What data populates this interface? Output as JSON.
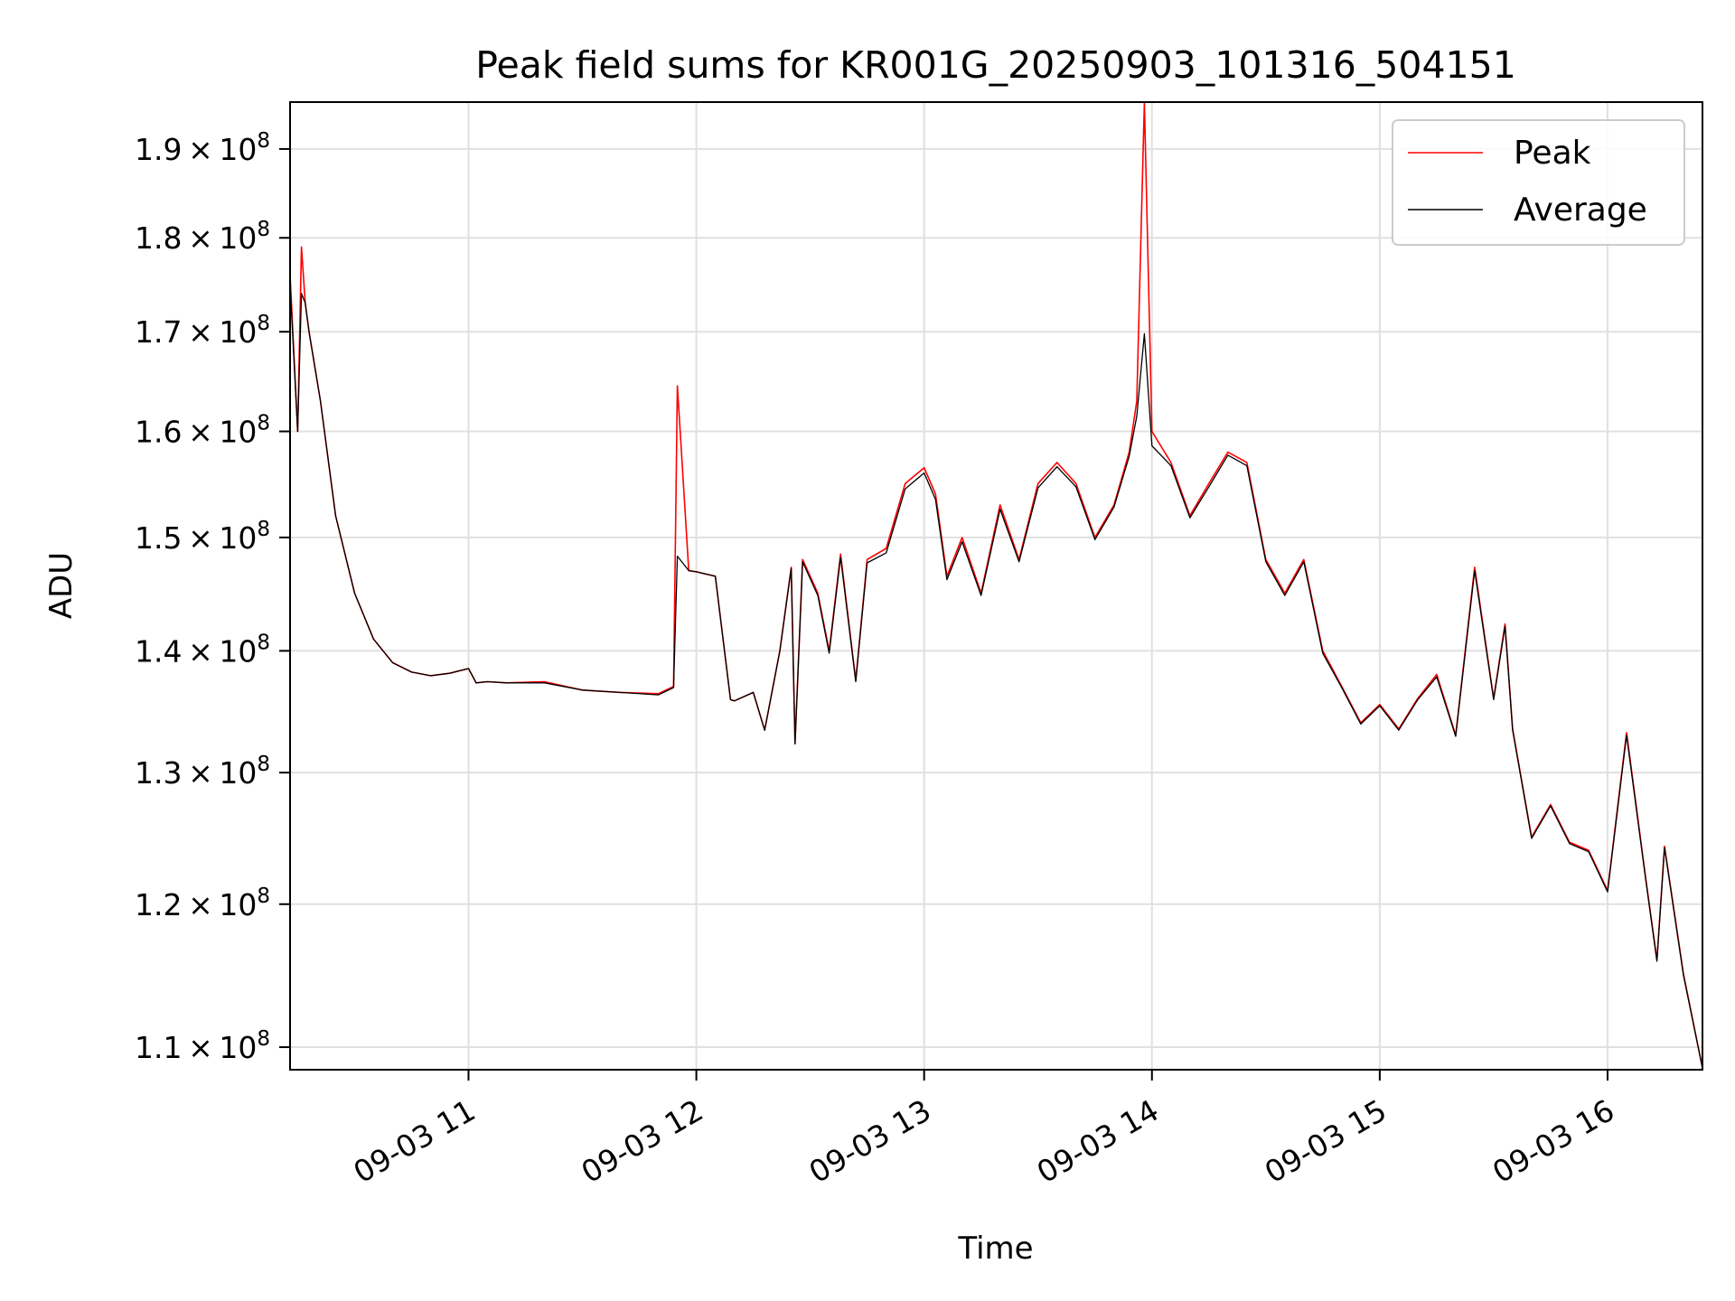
{
  "chart_data": {
    "type": "line",
    "title": "Peak field sums for KR001G_20250903_101316_504151",
    "xlabel": "Time",
    "ylabel": "ADU",
    "y_scale": "log",
    "ylim": [
      108500000,
      195500000
    ],
    "xlim": [
      "2025-09-03 10:13",
      "2025-09-03 16:25"
    ],
    "grid": true,
    "legend_position": "top-right",
    "x_ticks": [
      {
        "label": "09-03 11",
        "t": "2025-09-03 11:00"
      },
      {
        "label": "09-03 12",
        "t": "2025-09-03 12:00"
      },
      {
        "label": "09-03 13",
        "t": "2025-09-03 13:00"
      },
      {
        "label": "09-03 14",
        "t": "2025-09-03 14:00"
      },
      {
        "label": "09-03 15",
        "t": "2025-09-03 15:00"
      },
      {
        "label": "09-03 16",
        "t": "2025-09-03 16:00"
      }
    ],
    "y_ticks": [
      {
        "value": 110000000,
        "mantissa": "1.1",
        "exponent": "8"
      },
      {
        "value": 120000000,
        "mantissa": "1.2",
        "exponent": "8"
      },
      {
        "value": 130000000,
        "mantissa": "1.3",
        "exponent": "8"
      },
      {
        "value": 140000000,
        "mantissa": "1.4",
        "exponent": "8"
      },
      {
        "value": 150000000,
        "mantissa": "1.5",
        "exponent": "8"
      },
      {
        "value": 160000000,
        "mantissa": "1.6",
        "exponent": "8"
      },
      {
        "value": 170000000,
        "mantissa": "1.7",
        "exponent": "8"
      },
      {
        "value": 180000000,
        "mantissa": "1.8",
        "exponent": "8"
      },
      {
        "value": 190000000,
        "mantissa": "1.9",
        "exponent": "8"
      }
    ],
    "colors": {
      "peak": "#ff0000",
      "average": "#000000",
      "grid": "#e0e0e0"
    },
    "x": [
      "2025-09-03 10:13",
      "2025-09-03 10:15",
      "2025-09-03 10:16",
      "2025-09-03 10:17",
      "2025-09-03 10:18",
      "2025-09-03 10:21",
      "2025-09-03 10:25",
      "2025-09-03 10:30",
      "2025-09-03 10:35",
      "2025-09-03 10:40",
      "2025-09-03 10:45",
      "2025-09-03 10:50",
      "2025-09-03 10:55",
      "2025-09-03 11:00",
      "2025-09-03 11:02",
      "2025-09-03 11:05",
      "2025-09-03 11:10",
      "2025-09-03 11:20",
      "2025-09-03 11:30",
      "2025-09-03 11:40",
      "2025-09-03 11:50",
      "2025-09-03 11:54",
      "2025-09-03 11:55",
      "2025-09-03 11:58",
      "2025-09-03 12:00",
      "2025-09-03 12:05",
      "2025-09-03 12:09",
      "2025-09-03 12:10",
      "2025-09-03 12:15",
      "2025-09-03 12:18",
      "2025-09-03 12:22",
      "2025-09-03 12:25",
      "2025-09-03 12:26",
      "2025-09-03 12:28",
      "2025-09-03 12:32",
      "2025-09-03 12:35",
      "2025-09-03 12:38",
      "2025-09-03 12:42",
      "2025-09-03 12:45",
      "2025-09-03 12:50",
      "2025-09-03 12:55",
      "2025-09-03 13:00",
      "2025-09-03 13:03",
      "2025-09-03 13:06",
      "2025-09-03 13:10",
      "2025-09-03 13:15",
      "2025-09-03 13:20",
      "2025-09-03 13:25",
      "2025-09-03 13:30",
      "2025-09-03 13:35",
      "2025-09-03 13:40",
      "2025-09-03 13:45",
      "2025-09-03 13:50",
      "2025-09-03 13:54",
      "2025-09-03 13:56",
      "2025-09-03 13:58",
      "2025-09-03 14:00",
      "2025-09-03 14:05",
      "2025-09-03 14:10",
      "2025-09-03 14:15",
      "2025-09-03 14:20",
      "2025-09-03 14:25",
      "2025-09-03 14:30",
      "2025-09-03 14:35",
      "2025-09-03 14:40",
      "2025-09-03 14:45",
      "2025-09-03 14:50",
      "2025-09-03 14:55",
      "2025-09-03 15:00",
      "2025-09-03 15:05",
      "2025-09-03 15:10",
      "2025-09-03 15:15",
      "2025-09-03 15:20",
      "2025-09-03 15:25",
      "2025-09-03 15:30",
      "2025-09-03 15:33",
      "2025-09-03 15:35",
      "2025-09-03 15:40",
      "2025-09-03 15:45",
      "2025-09-03 15:50",
      "2025-09-03 15:55",
      "2025-09-03 16:00",
      "2025-09-03 16:05",
      "2025-09-03 16:10",
      "2025-09-03 16:13",
      "2025-09-03 16:15",
      "2025-09-03 16:20",
      "2025-09-03 16:25"
    ],
    "series": [
      {
        "name": "Peak",
        "color": "#ff0000",
        "values": [
          176000000,
          160000000,
          179000000,
          173000000,
          170000000,
          163000000,
          152000000,
          145000000,
          141000000,
          139000000,
          138200000,
          137900000,
          138100000,
          138500000,
          137300000,
          137400000,
          137300000,
          137400000,
          136700000,
          136500000,
          136400000,
          137000000,
          164500000,
          147000000,
          146900000,
          146500000,
          135900000,
          135800000,
          136500000,
          133400000,
          140000000,
          147300000,
          132300000,
          148000000,
          145000000,
          140000000,
          148500000,
          137500000,
          148000000,
          149000000,
          155000000,
          156500000,
          154000000,
          146500000,
          150000000,
          145000000,
          153000000,
          148000000,
          155000000,
          157000000,
          155000000,
          150000000,
          153000000,
          158000000,
          163000000,
          195500000,
          160000000,
          157000000,
          152000000,
          155000000,
          158000000,
          157000000,
          148000000,
          145000000,
          148000000,
          140000000,
          137000000,
          134000000,
          135500000,
          133500000,
          136000000,
          138000000,
          133000000,
          147300000,
          136000000,
          142300000,
          133500000,
          125000000,
          127500000,
          124600000,
          124000000,
          121000000,
          133200000,
          122000000,
          116000000,
          124300000,
          115000000,
          108600000
        ]
      },
      {
        "name": "Average",
        "color": "#000000",
        "values": [
          175000000,
          160000000,
          174000000,
          173000000,
          170000000,
          163000000,
          152000000,
          145000000,
          141000000,
          139000000,
          138200000,
          137900000,
          138100000,
          138500000,
          137300000,
          137400000,
          137300000,
          137300000,
          136700000,
          136500000,
          136300000,
          136900000,
          148300000,
          147000000,
          146900000,
          146500000,
          135900000,
          135800000,
          136500000,
          133400000,
          140000000,
          147200000,
          132300000,
          147800000,
          144800000,
          139800000,
          148200000,
          137400000,
          147700000,
          148600000,
          154500000,
          156000000,
          153500000,
          146200000,
          149600000,
          144800000,
          152600000,
          147800000,
          154600000,
          156600000,
          154700000,
          149800000,
          152800000,
          157600000,
          161500000,
          169800000,
          158600000,
          156700000,
          151800000,
          154700000,
          157700000,
          156700000,
          147800000,
          144800000,
          147800000,
          139800000,
          136900000,
          133900000,
          135400000,
          133400000,
          135900000,
          137800000,
          132900000,
          147000000,
          135900000,
          142100000,
          133400000,
          124900000,
          127400000,
          124500000,
          123900000,
          120900000,
          133000000,
          121900000,
          115900000,
          124200000,
          114900000,
          108600000
        ]
      }
    ]
  }
}
